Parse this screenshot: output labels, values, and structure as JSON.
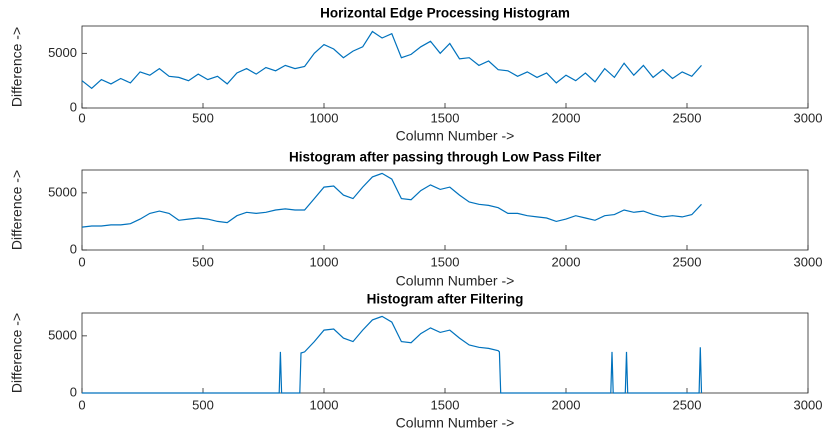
{
  "chart_data": [
    {
      "type": "line",
      "title": "Horizontal Edge Processing Histogram",
      "xlabel": "Column Number ->",
      "ylabel": "Difference ->",
      "color": "#0072bd",
      "x": [
        0,
        40,
        80,
        120,
        160,
        200,
        240,
        280,
        320,
        360,
        400,
        440,
        480,
        520,
        560,
        600,
        640,
        680,
        720,
        760,
        800,
        840,
        880,
        920,
        960,
        1000,
        1040,
        1080,
        1120,
        1160,
        1200,
        1240,
        1280,
        1320,
        1360,
        1400,
        1440,
        1480,
        1520,
        1560,
        1600,
        1640,
        1680,
        1720,
        1760,
        1800,
        1840,
        1880,
        1920,
        1960,
        2000,
        2040,
        2080,
        2120,
        2160,
        2200,
        2240,
        2280,
        2320,
        2360,
        2400,
        2440,
        2480,
        2520,
        2560
      ],
      "values": [
        2500,
        1800,
        2600,
        2200,
        2700,
        2300,
        3300,
        3000,
        3600,
        2900,
        2800,
        2500,
        3100,
        2600,
        2900,
        2200,
        3200,
        3600,
        3100,
        3700,
        3400,
        3900,
        3600,
        3800,
        5000,
        5800,
        5400,
        4600,
        5200,
        5600,
        7000,
        6400,
        6800,
        4600,
        4900,
        5600,
        6100,
        5000,
        5900,
        4500,
        4600,
        3900,
        4300,
        3500,
        3400,
        2900,
        3300,
        2800,
        3200,
        2300,
        3000,
        2500,
        3200,
        2400,
        3600,
        2800,
        4100,
        3000,
        3900,
        2800,
        3500,
        2700,
        3300,
        2900,
        3900
      ],
      "xlim": [
        0,
        3000
      ],
      "xticks": [
        0,
        500,
        1000,
        1500,
        2000,
        2500,
        3000
      ],
      "ylim": [
        0,
        7500
      ],
      "yticks": [
        0,
        5000
      ]
    },
    {
      "type": "line",
      "title": "Histogram after passing through Low Pass Filter",
      "xlabel": "Column Number ->",
      "ylabel": "Difference ->",
      "color": "#0072bd",
      "x": [
        0,
        40,
        80,
        120,
        160,
        200,
        240,
        280,
        320,
        360,
        400,
        440,
        480,
        520,
        560,
        600,
        640,
        680,
        720,
        760,
        800,
        840,
        880,
        920,
        960,
        1000,
        1040,
        1080,
        1120,
        1160,
        1200,
        1240,
        1280,
        1320,
        1360,
        1400,
        1440,
        1480,
        1520,
        1560,
        1600,
        1640,
        1680,
        1720,
        1760,
        1800,
        1840,
        1880,
        1920,
        1960,
        2000,
        2040,
        2080,
        2120,
        2160,
        2200,
        2240,
        2280,
        2320,
        2360,
        2400,
        2440,
        2480,
        2520,
        2560
      ],
      "values": [
        2000,
        2100,
        2100,
        2200,
        2200,
        2300,
        2700,
        3200,
        3400,
        3200,
        2600,
        2700,
        2800,
        2700,
        2500,
        2400,
        3000,
        3300,
        3200,
        3300,
        3500,
        3600,
        3500,
        3500,
        4500,
        5500,
        5600,
        4800,
        4500,
        5500,
        6400,
        6700,
        6200,
        4500,
        4400,
        5200,
        5700,
        5300,
        5500,
        4800,
        4200,
        4000,
        3900,
        3700,
        3200,
        3200,
        3000,
        2900,
        2800,
        2500,
        2700,
        3000,
        2800,
        2600,
        3000,
        3100,
        3500,
        3300,
        3400,
        3100,
        2900,
        3000,
        2900,
        3100,
        4000
      ],
      "xlim": [
        0,
        3000
      ],
      "xticks": [
        0,
        500,
        1000,
        1500,
        2000,
        2500,
        3000
      ],
      "ylim": [
        0,
        7000
      ],
      "yticks": [
        0,
        5000
      ]
    },
    {
      "type": "line",
      "title": "Histogram after Filtering",
      "xlabel": "Column Number ->",
      "ylabel": "Difference ->",
      "color": "#0072bd",
      "x": [
        0,
        815,
        820,
        825,
        900,
        905,
        920,
        960,
        1000,
        1040,
        1080,
        1120,
        1160,
        1200,
        1240,
        1280,
        1320,
        1360,
        1400,
        1440,
        1480,
        1520,
        1560,
        1600,
        1640,
        1680,
        1720,
        1725,
        1730,
        2185,
        2190,
        2195,
        2245,
        2250,
        2255,
        2550,
        2555,
        2560
      ],
      "values": [
        0,
        0,
        3600,
        0,
        0,
        3500,
        3600,
        4500,
        5500,
        5600,
        4800,
        4500,
        5500,
        6400,
        6700,
        6200,
        4500,
        4400,
        5200,
        5700,
        5300,
        5500,
        4800,
        4200,
        4000,
        3900,
        3700,
        3600,
        0,
        0,
        3600,
        0,
        0,
        3600,
        0,
        0,
        4000,
        0
      ],
      "xlim": [
        0,
        3000
      ],
      "xticks": [
        0,
        500,
        1000,
        1500,
        2000,
        2500,
        3000
      ],
      "ylim": [
        0,
        7000
      ],
      "yticks": [
        0,
        5000
      ]
    }
  ]
}
